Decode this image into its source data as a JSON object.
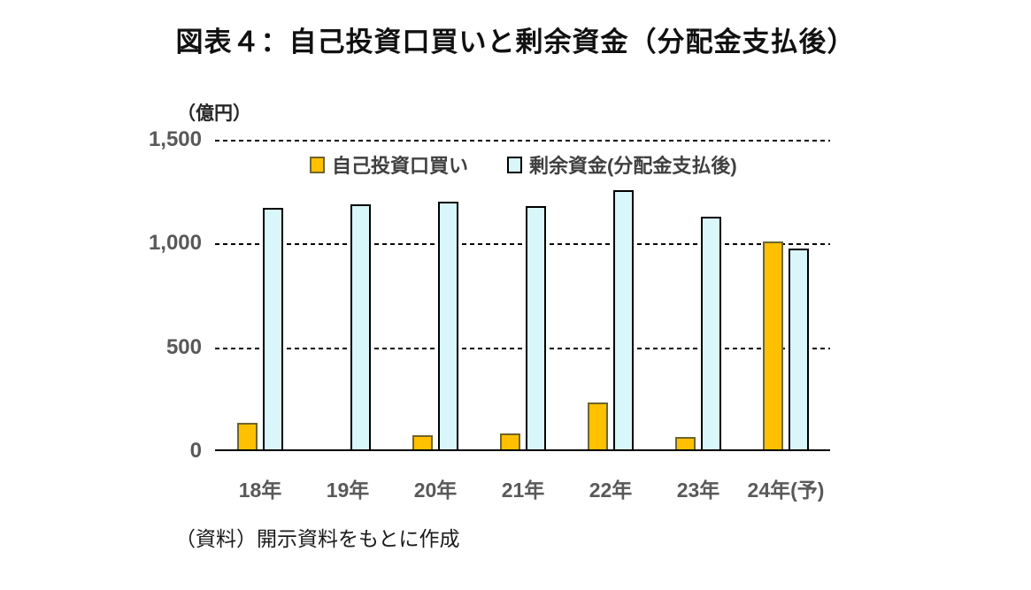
{
  "title": "図表４：自己投資口買いと剰余資金（分配金支払後）",
  "source_note": "（資料）開示資料をもとに作成",
  "colors": {
    "own_investment_fill": "#FFC000",
    "own_investment_border": "#6E652F",
    "surplus_fill": "#D9F6FA",
    "surplus_border": "#000000",
    "axis_text": "#595959",
    "gridline": "#000000"
  },
  "chart_data": {
    "type": "bar",
    "title": "図表４：自己投資口買いと剰余資金（分配金支払後）",
    "unit_label": "（億円）",
    "categories": [
      "18年",
      "19年",
      "20年",
      "21年",
      "22年",
      "23年",
      "24年(予)"
    ],
    "series": [
      {
        "name": "自己投資口買い",
        "color": "#FFC000",
        "border_color": "#6E652F",
        "values": [
          135,
          8,
          75,
          85,
          235,
          70,
          1010
        ]
      },
      {
        "name": "剰余資金(分配金支払後)",
        "color": "#D9F6FA",
        "border_color": "#000000",
        "values": [
          1170,
          1190,
          1200,
          1180,
          1255,
          1130,
          975
        ]
      }
    ],
    "ylim": [
      0,
      1500
    ],
    "yticks": [
      0,
      500,
      1000,
      1500
    ],
    "ytick_labels": [
      "0",
      "500",
      "1,000",
      "1,500"
    ],
    "xlabel": "",
    "ylabel": "（億円）",
    "grid": "horizontal-dashed",
    "legend_position": "top-inside"
  }
}
